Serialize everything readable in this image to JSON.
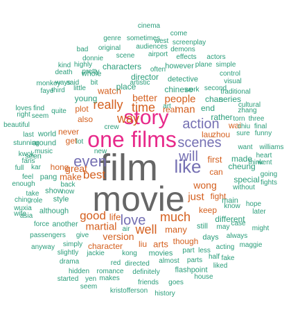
{
  "word_cloud": {
    "colors": {
      "teal": "#2a9d7a",
      "orange": "#d45f1e",
      "purple": "#7570b3",
      "pink": "#e7298a",
      "gray": "#666666"
    },
    "words": {
      "film": "film",
      "movie": "movie",
      "one": "one",
      "films": "films",
      "story": "story",
      "love": "love",
      "like": "like",
      "will": "will",
      "even": "even",
      "action": "action",
      "scenes": "scenes",
      "well": "well",
      "much": "much",
      "good": "good",
      "life": "life",
      "martial": "martial",
      "version": "version",
      "best": "best",
      "great": "great",
      "really": "really",
      "way": "way",
      "time": "time",
      "people": "people",
      "man": "man",
      "better": "better",
      "watch": "watch",
      "just": "just",
      "wong": "wong",
      "first": "first",
      "hong": "hong",
      "make": "make",
      "many": "many",
      "arts": "arts",
      "liu": "liu",
      "character": "character",
      "though": "though",
      "keep": "keep",
      "fight": "fight",
      "can": "can",
      "lau": "lau",
      "zhou": "zhou",
      "wai": "wai",
      "plot": "plot",
      "also": "also",
      "never": "never",
      "get": "get",
      "young": "young",
      "place": "place",
      "director": "director",
      "real": "real",
      "end": "end",
      "chan": "chan",
      "series": "series",
      "rather": "rather",
      "cheung": "cheung",
      "made": "made",
      "different": "different",
      "special": "special",
      "main": "main",
      "cinema": "cinema",
      "come": "come",
      "genre": "genre",
      "sometimes": "sometimes",
      "west": "west",
      "screenplay": "screenplay",
      "bad": "bad",
      "original": "original",
      "audiences": "audiences",
      "demons": "demons",
      "donnie": "donnie",
      "airport": "airport",
      "effects": "effects",
      "actors": "actors",
      "kind": "kind",
      "highly": "highly",
      "scene": "scene",
      "plane": "plane",
      "simple": "simple",
      "death": "death",
      "pretty": "pretty",
      "characters": "characters",
      "however": "however",
      "control": "control",
      "ways": "ways",
      "often": "often",
      "visual": "visual",
      "monkey": "monkey",
      "said": "said",
      "bit": "bit",
      "whole": "whole",
      "artistic": "artistic",
      "detective": "detective",
      "traditional": "traditional",
      "faye": "faye",
      "third": "third",
      "little": "little",
      "chinese": "chinese",
      "work": "work",
      "second": "second",
      "cultural": "cultural",
      "loves": "loves",
      "find": "find",
      "quite": "quite",
      "art": "art",
      "zhang": "zhang",
      "right": "right",
      "seem": "seem",
      "torn": "torn",
      "three": "three",
      "beautiful": "beautiful",
      "chiu": "chiu",
      "final": "final",
      "crew": "crew",
      "funny": "funny",
      "last": "last",
      "world": "world",
      "around": "around",
      "sure": "sure",
      "stunning": "stunning",
      "lot": "lot",
      "want": "want",
      "williams": "williams",
      "kwok": "kwok",
      "heart": "heart",
      "fans": "fans",
      "music": "music",
      "new": "new",
      "think": "think",
      "went": "went",
      "full": "full",
      "kar": "kar",
      "seen": "seen",
      "going": "going",
      "feel": "feel",
      "pang": "pang",
      "fights": "fights",
      "enough": "enough",
      "back": "back",
      "without": "without",
      "take": "take",
      "show": "show",
      "ching": "ching",
      "role": "role",
      "now": "now",
      "style": "style",
      "know": "know",
      "hope": "hope",
      "wuxia": "wuxia",
      "later": "later",
      "wife": "wife",
      "although": "although",
      "asia": "asia",
      "force": "force",
      "another": "another",
      "air": "air",
      "may": "may",
      "case": "case",
      "might": "might",
      "passengers": "passengers",
      "give": "give",
      "still": "still",
      "days": "days",
      "always": "always",
      "anyway": "anyway",
      "simply": "simply",
      "jackie": "jackie",
      "kong": "kong",
      "movies": "movies",
      "part": "part",
      "less": "less",
      "acting": "acting",
      "maggie": "maggie",
      "slightly": "slightly",
      "half": "half",
      "fake": "fake",
      "drama": "drama",
      "red": "red",
      "directed": "directed",
      "almost": "almost",
      "parts": "parts",
      "liked": "liked",
      "hidden": "hidden",
      "romance": "romance",
      "definitely": "definitely",
      "flashpoint": "flashpoint",
      "started": "started",
      "yen": "yen",
      "makes": "makes",
      "friends": "friends",
      "goes": "goes",
      "house": "house",
      "seem2": "seem",
      "kristofferson": "kristofferson",
      "history": "history"
    }
  }
}
